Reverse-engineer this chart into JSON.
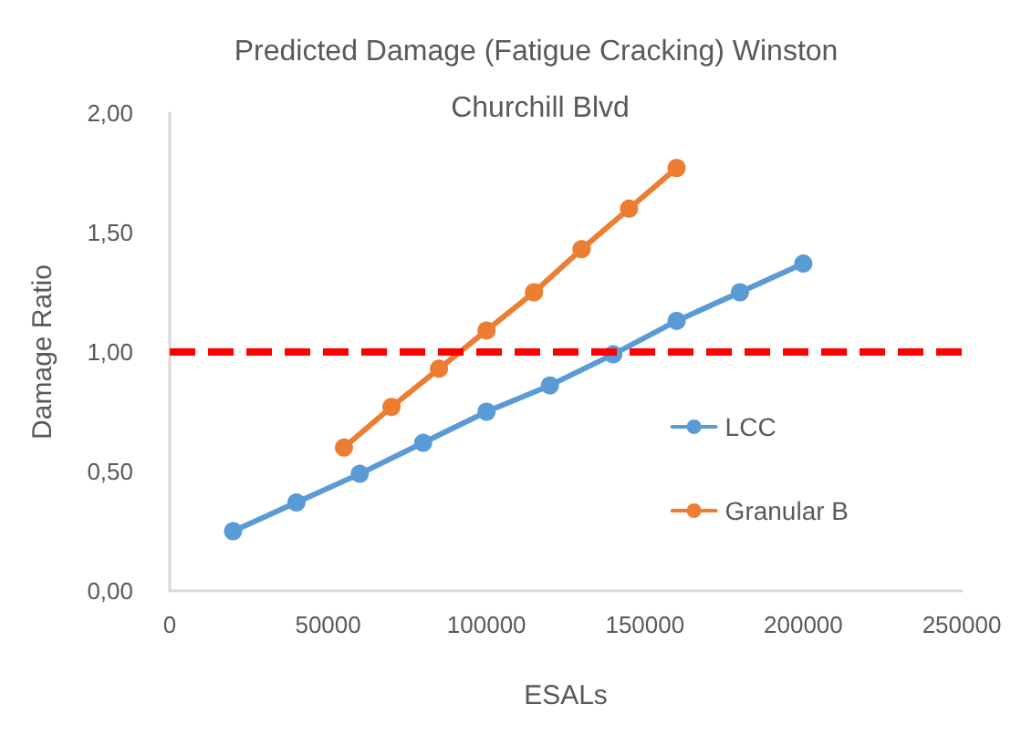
{
  "chart_data": {
    "type": "line",
    "title": "Predicted Damage (Fatigue Cracking) Winston Churchill Blvd",
    "xlabel": "ESALs",
    "ylabel": "Damage Ratio",
    "series": [
      {
        "name": "LCC",
        "color": "#5b9bd5",
        "x": [
          20000,
          40000,
          60000,
          80000,
          100000,
          120000,
          140000,
          160000,
          180000,
          200000
        ],
        "values": [
          0.25,
          0.37,
          0.49,
          0.62,
          0.75,
          0.86,
          0.99,
          1.13,
          1.25,
          1.37
        ]
      },
      {
        "name": "Granular B",
        "color": "#ed7d31",
        "x": [
          55000,
          70000,
          85000,
          100000,
          115000,
          130000,
          145000,
          160000
        ],
        "values": [
          0.6,
          0.77,
          0.93,
          1.09,
          1.25,
          1.43,
          1.6,
          1.77
        ]
      }
    ],
    "xlim": [
      0,
      250000
    ],
    "xticks": [
      0,
      50000,
      100000,
      150000,
      200000,
      250000
    ],
    "ylim": [
      0,
      2
    ],
    "yticks": [
      {
        "value": 0,
        "label": "0,00"
      },
      {
        "value": 0.5,
        "label": "0,50"
      },
      {
        "value": 1,
        "label": "1,00"
      },
      {
        "value": 1.5,
        "label": "1,50"
      },
      {
        "value": 2,
        "label": "2,00"
      }
    ],
    "ref_lines": [
      {
        "axis": "y",
        "value": 1,
        "color": "#ff0000",
        "line_style": "dashed"
      }
    ],
    "grid": false,
    "legend": "right",
    "marker": "circle",
    "line_style": "solid"
  }
}
